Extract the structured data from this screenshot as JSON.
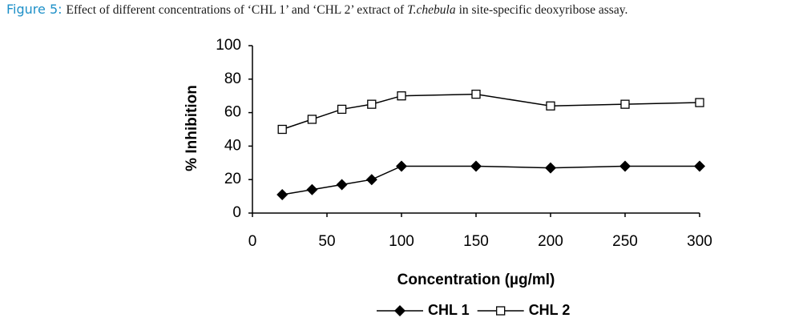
{
  "chart_data": {
    "type": "line",
    "title": [
      "Figure 5:",
      "Effect of different concentrations of ‘CHL 1’ and ‘CHL 2’ extract of",
      "T.chebula",
      "in site-specific deoxyribose assay."
    ],
    "x_label": "Concentration (µg/ml)",
    "y_label": "% Inhibition",
    "x": [
      20,
      40,
      60,
      80,
      100,
      150,
      200,
      250,
      300
    ],
    "series": [
      {
        "name": "CHL 1",
        "color": "#000000",
        "marker": "diamond",
        "values": [
          11,
          14,
          17,
          20,
          28,
          28,
          27,
          28,
          28
        ]
      },
      {
        "name": "CHL 2",
        "color": "#000000",
        "marker": "square",
        "values": [
          50,
          56,
          62,
          65,
          70,
          71,
          64,
          65,
          66
        ]
      }
    ],
    "xlim": [
      0,
      300
    ],
    "xticks": [
      0,
      50,
      100,
      150,
      200,
      250,
      300
    ],
    "ylim": [
      0,
      100
    ],
    "yticks": [
      0,
      20,
      40,
      60,
      80,
      100
    ],
    "legend": "bottom",
    "grid": false
  }
}
